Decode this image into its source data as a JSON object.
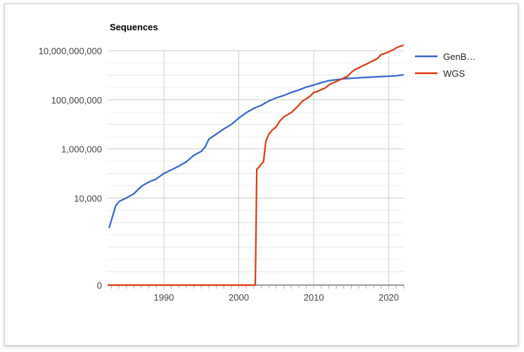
{
  "chart_data": {
    "type": "line",
    "title": "Sequences",
    "xlabel": "",
    "ylabel": "",
    "x_scale": "linear",
    "y_scale": "log",
    "xlim": [
      1982.5,
      2022
    ],
    "x_ticks": [
      1990,
      2000,
      2010,
      2020
    ],
    "x_tick_labels": [
      "1990",
      "2000",
      "2010",
      "2020"
    ],
    "y_ticks": [
      0,
      10000,
      1000000,
      100000000,
      10000000000
    ],
    "y_tick_labels": [
      "0",
      "10,000",
      "1,000,000",
      "100,000,000",
      "10,000,000,000"
    ],
    "grid": true,
    "legend_position": "right",
    "series": [
      {
        "name": "GenB…",
        "color": "#3366cc",
        "points": [
          [
            1982.7,
            600
          ],
          [
            1983.2,
            2000
          ],
          [
            1983.6,
            5000
          ],
          [
            1984.1,
            7500
          ],
          [
            1985,
            10000
          ],
          [
            1986,
            15000
          ],
          [
            1987,
            30000
          ],
          [
            1988,
            45000
          ],
          [
            1989,
            60000
          ],
          [
            1990,
            100000
          ],
          [
            1991,
            140000
          ],
          [
            1992,
            200000
          ],
          [
            1993,
            300000
          ],
          [
            1994,
            550000
          ],
          [
            1995,
            800000
          ],
          [
            1995.5,
            1200000
          ],
          [
            1996,
            2500000
          ],
          [
            1997,
            4000000
          ],
          [
            1998,
            6500000
          ],
          [
            1999,
            10000000
          ],
          [
            2000,
            18000000
          ],
          [
            2001,
            30000000
          ],
          [
            2002,
            45000000
          ],
          [
            2003,
            60000000
          ],
          [
            2004,
            90000000
          ],
          [
            2005,
            120000000
          ],
          [
            2006,
            150000000
          ],
          [
            2007,
            200000000
          ],
          [
            2008,
            250000000
          ],
          [
            2009,
            330000000
          ],
          [
            2010,
            400000000
          ],
          [
            2011,
            500000000
          ],
          [
            2012,
            600000000
          ],
          [
            2013,
            660000000
          ],
          [
            2014,
            720000000
          ],
          [
            2015,
            750000000
          ],
          [
            2016,
            790000000
          ],
          [
            2017,
            820000000
          ],
          [
            2018,
            850000000
          ],
          [
            2019,
            880000000
          ],
          [
            2020,
            910000000
          ],
          [
            2021,
            950000000
          ],
          [
            2022,
            1050000000
          ]
        ]
      },
      {
        "name": "WGS",
        "color": "#dc3912",
        "points": [
          [
            1982.5,
            0
          ],
          [
            2002.2,
            0
          ],
          [
            2002.4,
            150000
          ],
          [
            2002.7,
            180000
          ],
          [
            2003,
            250000
          ],
          [
            2003.3,
            300000
          ],
          [
            2003.6,
            2000000
          ],
          [
            2004,
            4000000
          ],
          [
            2004.5,
            6000000
          ],
          [
            2005,
            8000000
          ],
          [
            2005.5,
            14000000
          ],
          [
            2006,
            20000000
          ],
          [
            2006.6,
            26000000
          ],
          [
            2007,
            30000000
          ],
          [
            2007.5,
            42000000
          ],
          [
            2008,
            60000000
          ],
          [
            2008.5,
            90000000
          ],
          [
            2009,
            110000000
          ],
          [
            2009.5,
            140000000
          ],
          [
            2010,
            200000000
          ],
          [
            2010.5,
            220000000
          ],
          [
            2011,
            260000000
          ],
          [
            2011.5,
            300000000
          ],
          [
            2012,
            400000000
          ],
          [
            2012.5,
            480000000
          ],
          [
            2013,
            560000000
          ],
          [
            2013.5,
            650000000
          ],
          [
            2014,
            780000000
          ],
          [
            2014.5,
            900000000
          ],
          [
            2015,
            1300000000
          ],
          [
            2015.5,
            1700000000
          ],
          [
            2016,
            2000000000
          ],
          [
            2016.5,
            2400000000
          ],
          [
            2017,
            2800000000
          ],
          [
            2017.5,
            3400000000
          ],
          [
            2018,
            4000000000
          ],
          [
            2018.5,
            4800000000
          ],
          [
            2019,
            7000000000
          ],
          [
            2019.5,
            7800000000
          ],
          [
            2020,
            9000000000
          ],
          [
            2020.5,
            10500000000
          ],
          [
            2021,
            13000000000
          ],
          [
            2021.5,
            15000000000
          ],
          [
            2022,
            17000000000
          ]
        ]
      }
    ]
  }
}
